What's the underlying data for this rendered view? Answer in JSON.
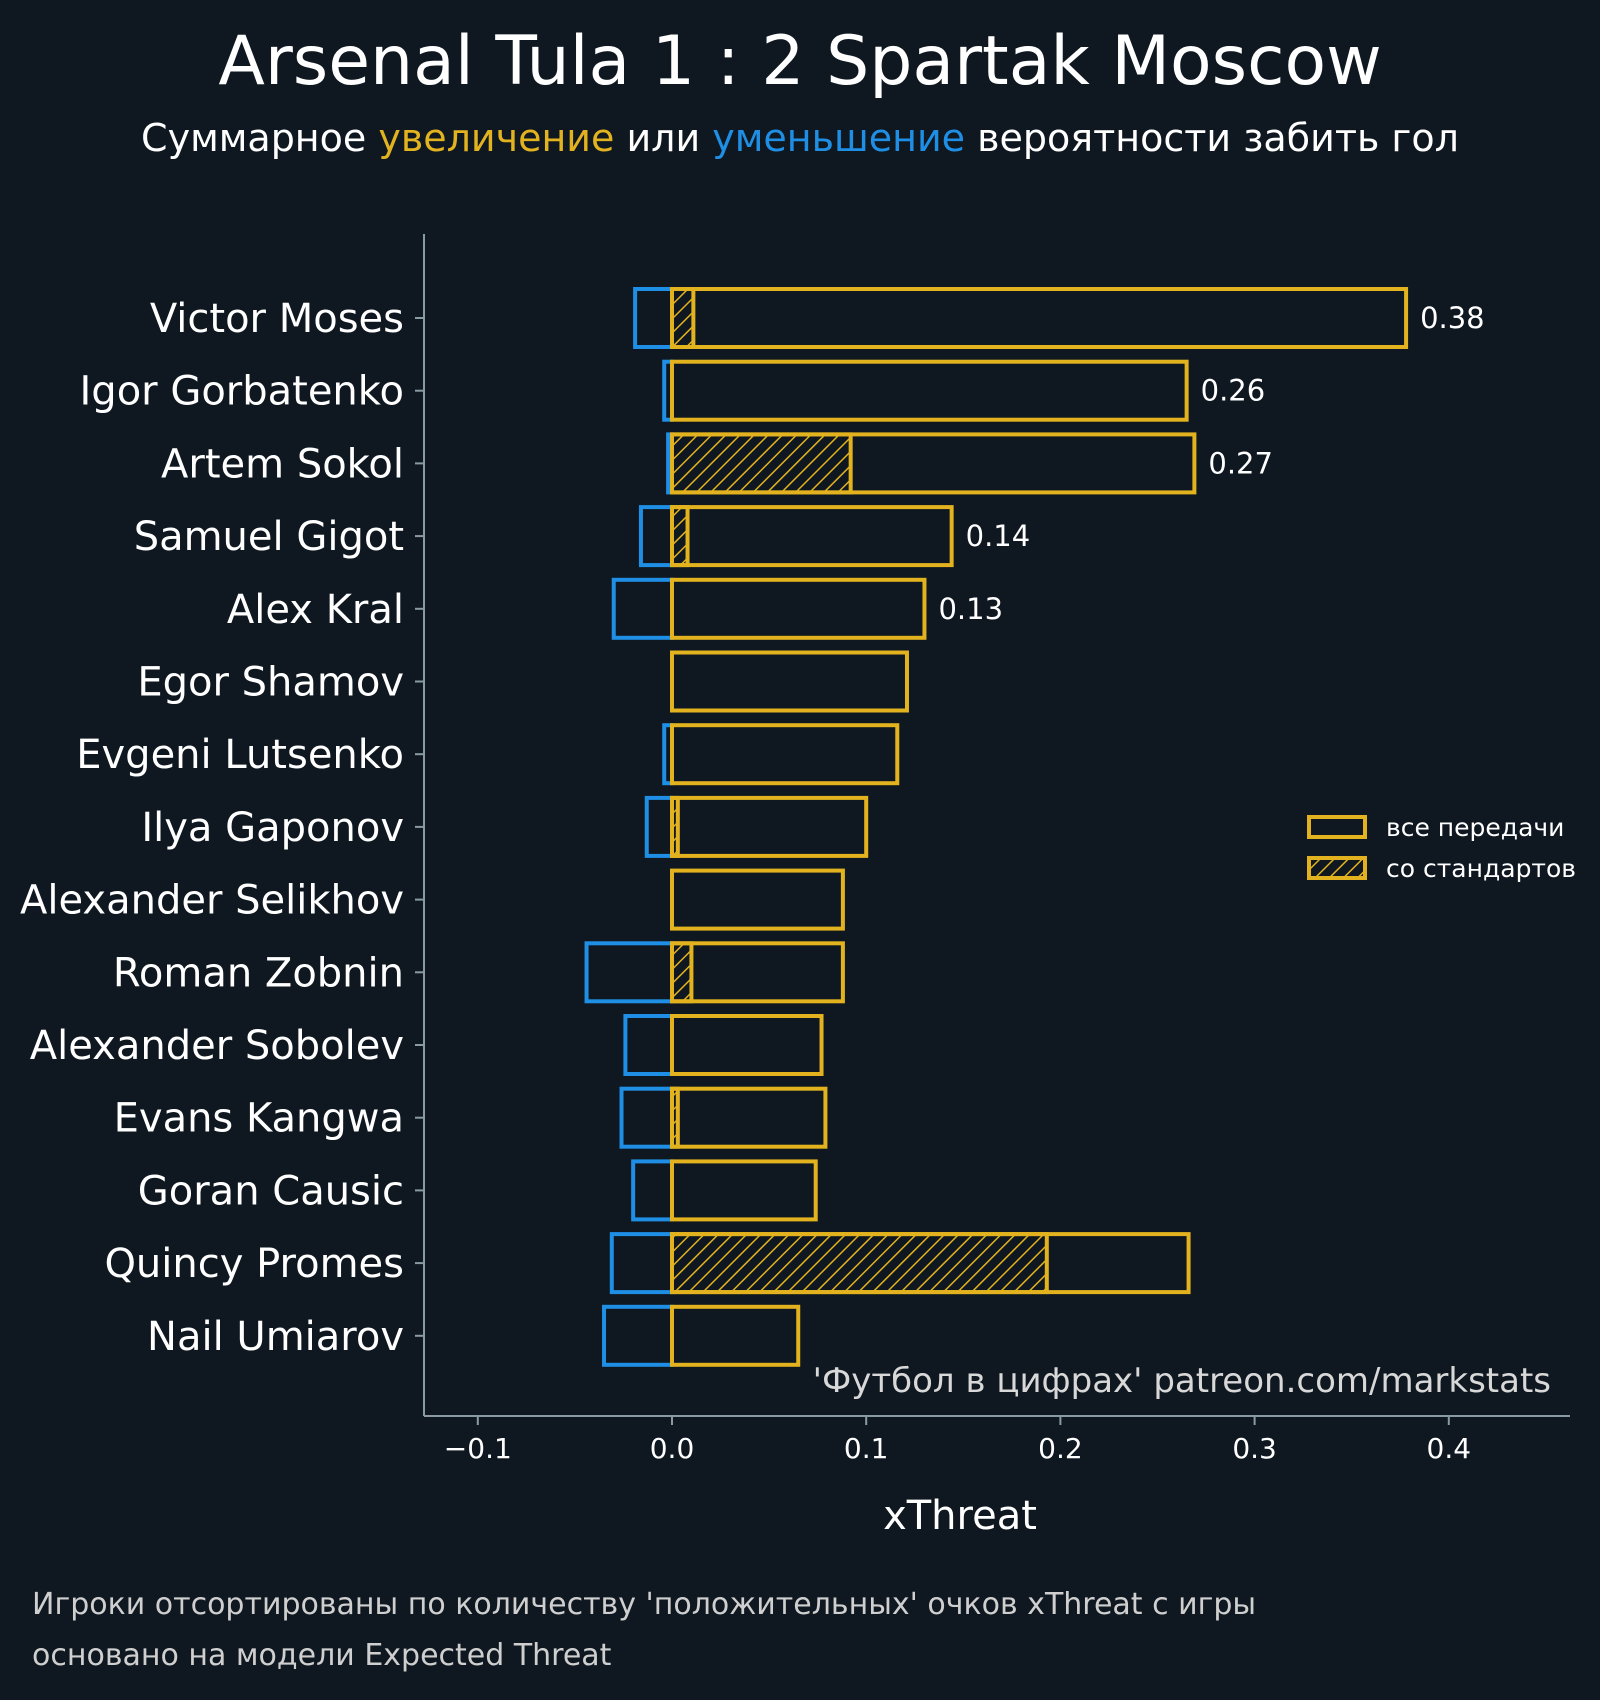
{
  "chart_data": {
    "type": "bar",
    "orientation": "horizontal",
    "title": "Arsenal Tula 1 : 2 Spartak Moscow",
    "subtitle": {
      "before": "Суммарное ",
      "increase": "увеличение",
      "middle": " или ",
      "decrease": "уменьшение",
      "after": " вероятности забить гол"
    },
    "xlabel": "xThreat",
    "xlim": [
      -0.13,
      0.46
    ],
    "xticks": [
      -0.1,
      0.0,
      0.1,
      0.2,
      0.3,
      0.4
    ],
    "xtick_labels": [
      "−0.1",
      "0.0",
      "0.1",
      "0.2",
      "0.3",
      "0.4"
    ],
    "legend": {
      "placement": "right",
      "items": [
        {
          "label": "все передачи",
          "style": "outline"
        },
        {
          "label": "со стандартов",
          "style": "hatched"
        }
      ]
    },
    "watermark": "'Футбол в цифрах' patreon.com/markstats",
    "colors": {
      "background": "#0f1820",
      "positive": "#e2b21f",
      "negative": "#1f8fe5",
      "axis": "#8a9aa4",
      "text": "#ffffff"
    },
    "players": [
      {
        "name": "Victor Moses",
        "positive": 0.378,
        "negative": -0.019,
        "set_piece": 0.011,
        "label": "0.38"
      },
      {
        "name": "Igor Gorbatenko",
        "positive": 0.265,
        "negative": -0.004,
        "set_piece": 0.0,
        "label": "0.26"
      },
      {
        "name": "Artem Sokol",
        "positive": 0.269,
        "negative": -0.002,
        "set_piece": 0.092,
        "label": "0.27"
      },
      {
        "name": "Samuel Gigot",
        "positive": 0.144,
        "negative": -0.016,
        "set_piece": 0.008,
        "label": "0.14"
      },
      {
        "name": "Alex Kral",
        "positive": 0.13,
        "negative": -0.03,
        "set_piece": 0.0,
        "label": "0.13"
      },
      {
        "name": "Egor Shamov",
        "positive": 0.121,
        "negative": 0.0,
        "set_piece": 0.0,
        "label": ""
      },
      {
        "name": "Evgeni Lutsenko",
        "positive": 0.116,
        "negative": -0.004,
        "set_piece": 0.0,
        "label": ""
      },
      {
        "name": "Ilya Gaponov",
        "positive": 0.1,
        "negative": -0.013,
        "set_piece": 0.003,
        "label": ""
      },
      {
        "name": "Alexander Selikhov",
        "positive": 0.088,
        "negative": 0.0,
        "set_piece": 0.0,
        "label": ""
      },
      {
        "name": "Roman Zobnin",
        "positive": 0.088,
        "negative": -0.044,
        "set_piece": 0.01,
        "label": ""
      },
      {
        "name": "Alexander Sobolev",
        "positive": 0.077,
        "negative": -0.024,
        "set_piece": 0.0,
        "label": ""
      },
      {
        "name": "Evans Kangwa",
        "positive": 0.079,
        "negative": -0.026,
        "set_piece": 0.003,
        "label": ""
      },
      {
        "name": "Goran Causic",
        "positive": 0.074,
        "negative": -0.02,
        "set_piece": 0.0,
        "label": ""
      },
      {
        "name": "Quincy Promes",
        "positive": 0.266,
        "negative": -0.031,
        "set_piece": 0.193,
        "label": ""
      },
      {
        "name": "Nail Umiarov",
        "positive": 0.065,
        "negative": -0.035,
        "set_piece": 0.0,
        "label": ""
      }
    ]
  },
  "footnotes": [
    "Игроки отсортированы по количеству 'положительных' очков xThreat с игры",
    "основано на модели Expected Threat"
  ]
}
